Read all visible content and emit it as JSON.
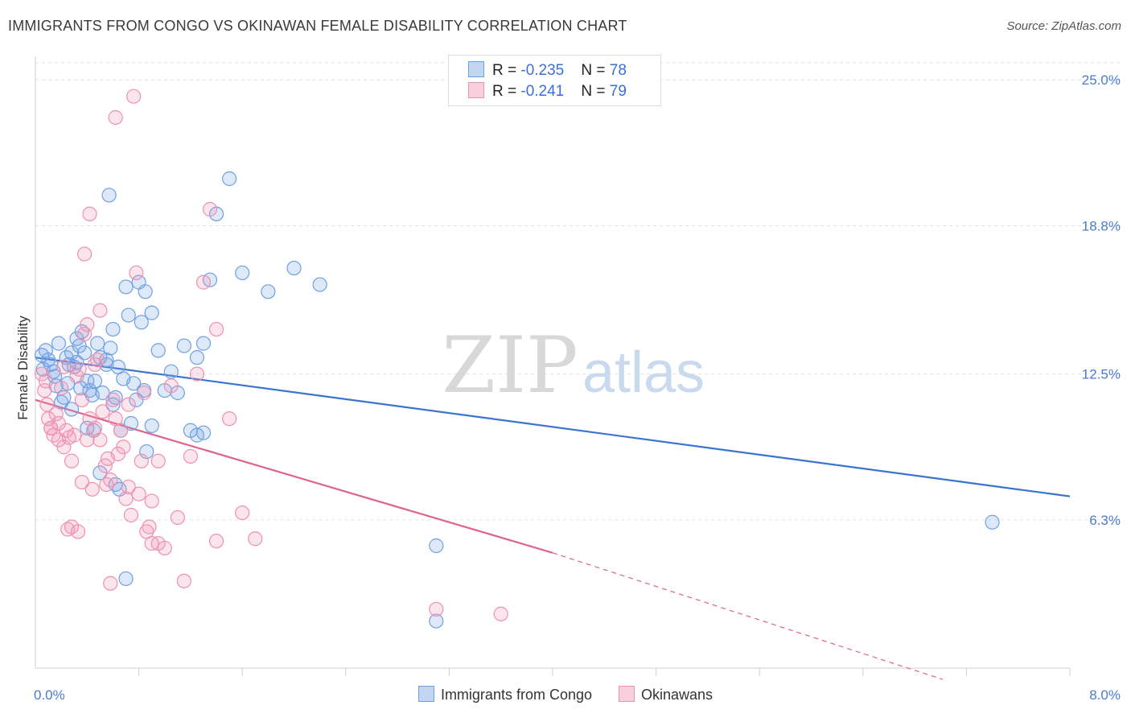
{
  "title": "IMMIGRANTS FROM CONGO VS OKINAWAN FEMALE DISABILITY CORRELATION CHART",
  "source": "Source: ZipAtlas.com",
  "watermark": {
    "zip": "ZIP",
    "atlas": "atlas"
  },
  "legend": {
    "rows": [
      {
        "r_label": "R = ",
        "r_value": "-0.235",
        "n_label": "N = ",
        "n_value": "78"
      },
      {
        "r_label": "R = ",
        "r_value": "-0.241",
        "n_label": "N = ",
        "n_value": "79"
      }
    ]
  },
  "chart_data": {
    "type": "scatter",
    "title": "IMMIGRANTS FROM CONGO VS OKINAWAN FEMALE DISABILITY CORRELATION CHART",
    "ylabel": "Female Disability",
    "xlim": [
      0,
      8
    ],
    "ylim": [
      0,
      26.0
    ],
    "x_tick_labels": [
      "0.0%",
      "8.0%"
    ],
    "y_ticks": [
      6.3,
      12.5,
      18.8,
      25.0
    ],
    "y_tick_labels": [
      "6.3%",
      "12.5%",
      "18.8%",
      "25.0%"
    ],
    "grid": "horizontal dashed",
    "legend_position": "top-center",
    "series": [
      {
        "name": "Immigrants from Congo",
        "color": "#6fa0e0",
        "fill": "rgba(120,165,230,0.25)",
        "trend": {
          "x": [
            0,
            8
          ],
          "y": [
            13.2,
            7.3
          ],
          "color": "#3a74d0"
        },
        "points": [
          [
            0.05,
            13.3
          ],
          [
            0.08,
            13.5
          ],
          [
            0.1,
            13.1
          ],
          [
            0.12,
            12.9
          ],
          [
            0.14,
            12.6
          ],
          [
            0.16,
            12.0
          ],
          [
            0.18,
            13.8
          ],
          [
            0.2,
            11.3
          ],
          [
            0.22,
            11.5
          ],
          [
            0.24,
            13.2
          ],
          [
            0.26,
            12.9
          ],
          [
            0.28,
            13.4
          ],
          [
            0.3,
            12.8
          ],
          [
            0.32,
            14.0
          ],
          [
            0.34,
            13.7
          ],
          [
            0.36,
            14.3
          ],
          [
            0.38,
            13.4
          ],
          [
            0.4,
            12.2
          ],
          [
            0.42,
            11.8
          ],
          [
            0.44,
            11.6
          ],
          [
            0.46,
            12.2
          ],
          [
            0.48,
            13.8
          ],
          [
            0.5,
            13.2
          ],
          [
            0.52,
            11.7
          ],
          [
            0.55,
            13.1
          ],
          [
            0.57,
            20.1
          ],
          [
            0.58,
            13.6
          ],
          [
            0.6,
            14.4
          ],
          [
            0.62,
            11.5
          ],
          [
            0.64,
            12.8
          ],
          [
            0.66,
            10.1
          ],
          [
            0.68,
            12.3
          ],
          [
            0.7,
            16.2
          ],
          [
            0.72,
            15.0
          ],
          [
            0.74,
            10.4
          ],
          [
            0.76,
            12.1
          ],
          [
            0.78,
            11.4
          ],
          [
            0.8,
            16.4
          ],
          [
            0.82,
            14.7
          ],
          [
            0.84,
            11.8
          ],
          [
            0.86,
            9.2
          ],
          [
            0.9,
            10.3
          ],
          [
            0.95,
            13.5
          ],
          [
            1.0,
            11.8
          ],
          [
            1.05,
            12.6
          ],
          [
            1.1,
            11.7
          ],
          [
            1.15,
            13.7
          ],
          [
            1.2,
            10.1
          ],
          [
            1.25,
            13.2
          ],
          [
            1.3,
            13.8
          ],
          [
            1.35,
            16.5
          ],
          [
            1.4,
            19.3
          ],
          [
            1.5,
            20.8
          ],
          [
            1.6,
            16.8
          ],
          [
            1.8,
            16.0
          ],
          [
            2.0,
            17.0
          ],
          [
            2.2,
            16.3
          ],
          [
            0.35,
            11.9
          ],
          [
            0.45,
            10.1
          ],
          [
            0.6,
            11.2
          ],
          [
            0.65,
            7.6
          ],
          [
            0.5,
            8.3
          ],
          [
            0.7,
            3.8
          ],
          [
            0.85,
            16.0
          ],
          [
            3.1,
            5.2
          ],
          [
            3.1,
            2.0
          ],
          [
            7.4,
            6.2
          ],
          [
            0.15,
            12.4
          ],
          [
            0.25,
            12.1
          ],
          [
            0.32,
            13.0
          ],
          [
            0.28,
            11.0
          ],
          [
            0.4,
            10.2
          ],
          [
            0.55,
            12.9
          ],
          [
            0.9,
            15.1
          ],
          [
            1.3,
            10.0
          ],
          [
            1.25,
            9.9
          ],
          [
            0.62,
            7.8
          ],
          [
            0.06,
            12.7
          ]
        ]
      },
      {
        "name": "Okinawans",
        "color": "#ee90b0",
        "fill": "rgba(240,150,180,0.25)",
        "trend": {
          "x": [
            0,
            4.0
          ],
          "y": [
            11.4,
            4.9
          ],
          "dash_x": [
            4.0,
            8.0
          ],
          "dash_y": [
            4.9,
            -1.6
          ],
          "color": "#e0628e"
        },
        "points": [
          [
            0.05,
            12.5
          ],
          [
            0.07,
            11.8
          ],
          [
            0.09,
            11.2
          ],
          [
            0.1,
            10.6
          ],
          [
            0.12,
            10.2
          ],
          [
            0.14,
            9.9
          ],
          [
            0.16,
            10.8
          ],
          [
            0.18,
            10.4
          ],
          [
            0.2,
            11.9
          ],
          [
            0.22,
            12.8
          ],
          [
            0.24,
            10.1
          ],
          [
            0.26,
            9.8
          ],
          [
            0.28,
            8.8
          ],
          [
            0.3,
            9.9
          ],
          [
            0.32,
            12.4
          ],
          [
            0.34,
            12.7
          ],
          [
            0.36,
            11.4
          ],
          [
            0.38,
            14.2
          ],
          [
            0.4,
            14.6
          ],
          [
            0.42,
            10.6
          ],
          [
            0.44,
            7.6
          ],
          [
            0.46,
            12.9
          ],
          [
            0.48,
            13.1
          ],
          [
            0.5,
            15.2
          ],
          [
            0.52,
            10.9
          ],
          [
            0.54,
            8.6
          ],
          [
            0.56,
            8.9
          ],
          [
            0.58,
            8.0
          ],
          [
            0.6,
            11.4
          ],
          [
            0.62,
            10.6
          ],
          [
            0.64,
            9.1
          ],
          [
            0.66,
            10.1
          ],
          [
            0.68,
            9.4
          ],
          [
            0.7,
            7.2
          ],
          [
            0.72,
            11.2
          ],
          [
            0.74,
            6.5
          ],
          [
            0.76,
            24.3
          ],
          [
            0.78,
            16.8
          ],
          [
            0.8,
            7.4
          ],
          [
            0.82,
            8.8
          ],
          [
            0.84,
            11.7
          ],
          [
            0.86,
            5.8
          ],
          [
            0.88,
            6.0
          ],
          [
            0.9,
            7.1
          ],
          [
            0.95,
            5.3
          ],
          [
            1.0,
            5.1
          ],
          [
            1.05,
            12.0
          ],
          [
            1.1,
            6.4
          ],
          [
            1.15,
            3.7
          ],
          [
            1.2,
            9.0
          ],
          [
            1.25,
            12.5
          ],
          [
            1.3,
            16.4
          ],
          [
            1.35,
            19.5
          ],
          [
            1.4,
            14.4
          ],
          [
            1.5,
            10.6
          ],
          [
            1.6,
            6.6
          ],
          [
            1.7,
            5.5
          ],
          [
            0.62,
            23.4
          ],
          [
            0.42,
            19.3
          ],
          [
            0.38,
            17.6
          ],
          [
            0.72,
            7.7
          ],
          [
            0.5,
            9.7
          ],
          [
            0.58,
            3.6
          ],
          [
            0.9,
            5.3
          ],
          [
            0.25,
            5.9
          ],
          [
            0.28,
            6.0
          ],
          [
            0.33,
            5.8
          ],
          [
            0.4,
            9.7
          ],
          [
            0.46,
            10.2
          ],
          [
            0.55,
            7.8
          ],
          [
            0.18,
            9.7
          ],
          [
            0.12,
            10.2
          ],
          [
            0.08,
            12.2
          ],
          [
            0.22,
            9.4
          ],
          [
            0.36,
            7.9
          ],
          [
            3.1,
            2.5
          ],
          [
            3.6,
            2.3
          ],
          [
            1.4,
            5.4
          ],
          [
            0.95,
            8.8
          ]
        ]
      }
    ]
  }
}
